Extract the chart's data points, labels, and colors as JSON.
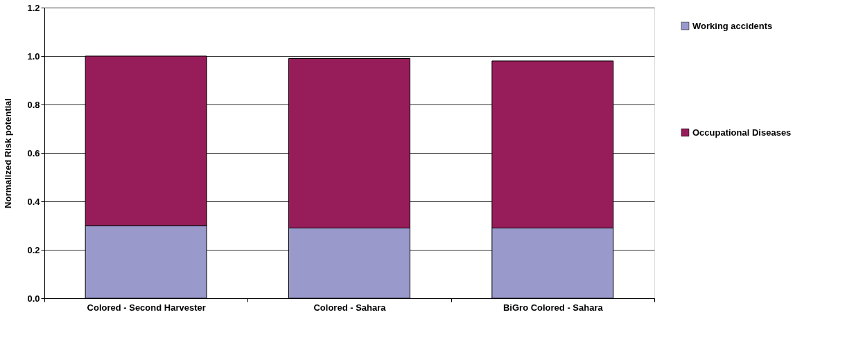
{
  "chart_data": {
    "type": "bar",
    "stacked": true,
    "ylabel": "Normalized Risk potential",
    "categories": [
      "Colored - Second Harvester",
      "Colored - Sahara",
      "BiGro Colored - Sahara"
    ],
    "series": [
      {
        "name": "Working accidents",
        "color": "#9999cc",
        "values": [
          0.3,
          0.29,
          0.29
        ]
      },
      {
        "name": "Occupational Diseases",
        "color": "#961d5a",
        "values": [
          0.7,
          0.7,
          0.69
        ]
      }
    ],
    "ylim": [
      0,
      1.2
    ],
    "yticks": [
      {
        "value": 0,
        "label": "0.0"
      },
      {
        "value": 0.2,
        "label": "0.2"
      },
      {
        "value": 0.4,
        "label": "0.4"
      },
      {
        "value": 0.6,
        "label": "0.6"
      },
      {
        "value": 0.8,
        "label": "0.8"
      },
      {
        "value": 1.0,
        "label": "1.0"
      },
      {
        "value": 1.2,
        "label": "1.2"
      }
    ],
    "grid": "y",
    "legend": "right"
  }
}
